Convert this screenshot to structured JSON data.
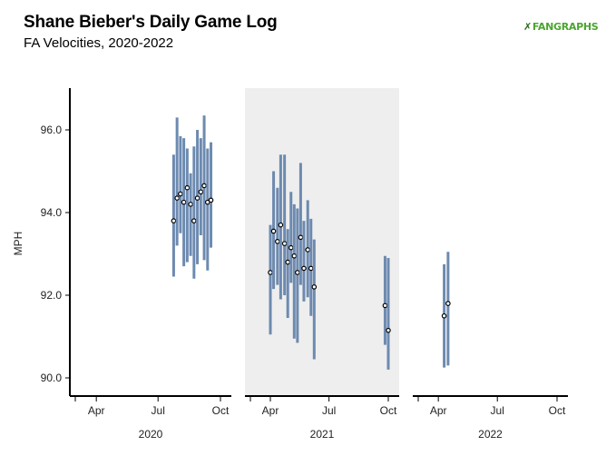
{
  "header": {
    "title": "Shane Bieber's Daily Game Log",
    "subtitle": "FA Velocities, 2020-2022",
    "logo_text": "FANGRAPHS"
  },
  "chart_data": {
    "type": "scatter",
    "title": "Shane Bieber's Daily Game Log",
    "subtitle": "FA Velocities, 2020-2022",
    "ylabel": "MPH",
    "ylim": [
      89.6,
      97.0
    ],
    "yticks": [
      90.0,
      92.0,
      94.0,
      96.0
    ],
    "ytick_labels": [
      "90.0",
      "92.0",
      "94.0",
      "96.0"
    ],
    "grid": false,
    "colors": {
      "range": "#6d8ab0",
      "point": "#000000",
      "highlight_panel": "#eeeeee"
    },
    "panels": [
      {
        "year": "2020",
        "highlighted": false,
        "ticks": [
          "Apr",
          "Jul",
          "Oct"
        ],
        "games": [
          {
            "date": "2020-07-24",
            "value": 93.8,
            "min": 92.45,
            "max": 95.4
          },
          {
            "date": "2020-07-29",
            "value": 94.35,
            "min": 93.2,
            "max": 96.3
          },
          {
            "date": "2020-08-03",
            "value": 94.45,
            "min": 93.5,
            "max": 95.85
          },
          {
            "date": "2020-08-08",
            "value": 94.25,
            "min": 92.7,
            "max": 95.8
          },
          {
            "date": "2020-08-13",
            "value": 94.6,
            "min": 92.8,
            "max": 95.55
          },
          {
            "date": "2020-08-18",
            "value": 94.2,
            "min": 92.95,
            "max": 94.95
          },
          {
            "date": "2020-08-23",
            "value": 93.8,
            "min": 92.4,
            "max": 95.6
          },
          {
            "date": "2020-08-28",
            "value": 94.35,
            "min": 92.75,
            "max": 96.0
          },
          {
            "date": "2020-09-02",
            "value": 94.5,
            "min": 93.45,
            "max": 95.8
          },
          {
            "date": "2020-09-07",
            "value": 94.65,
            "min": 92.85,
            "max": 96.35
          },
          {
            "date": "2020-09-12",
            "value": 94.25,
            "min": 92.6,
            "max": 95.55
          },
          {
            "date": "2020-09-17",
            "value": 94.3,
            "min": 93.15,
            "max": 95.7
          }
        ]
      },
      {
        "year": "2021",
        "highlighted": true,
        "ticks": [
          "Apr",
          "Jul",
          "Oct"
        ],
        "games": [
          {
            "date": "2021-04-01",
            "value": 92.55,
            "min": 91.05,
            "max": 93.7
          },
          {
            "date": "2021-04-06",
            "value": 93.55,
            "min": 92.15,
            "max": 95.0
          },
          {
            "date": "2021-04-12",
            "value": 93.3,
            "min": 92.25,
            "max": 94.6
          },
          {
            "date": "2021-04-17",
            "value": 93.7,
            "min": 91.9,
            "max": 95.4
          },
          {
            "date": "2021-04-23",
            "value": 93.25,
            "min": 92.0,
            "max": 95.4
          },
          {
            "date": "2021-04-28",
            "value": 92.8,
            "min": 91.45,
            "max": 93.6
          },
          {
            "date": "2021-05-03",
            "value": 93.15,
            "min": 92.3,
            "max": 94.5
          },
          {
            "date": "2021-05-08",
            "value": 92.95,
            "min": 90.95,
            "max": 94.2
          },
          {
            "date": "2021-05-13",
            "value": 92.55,
            "min": 90.85,
            "max": 94.1
          },
          {
            "date": "2021-05-18",
            "value": 93.4,
            "min": 92.25,
            "max": 95.2
          },
          {
            "date": "2021-05-23",
            "value": 92.65,
            "min": 91.85,
            "max": 93.8
          },
          {
            "date": "2021-05-29",
            "value": 93.1,
            "min": 91.95,
            "max": 94.3
          },
          {
            "date": "2021-06-03",
            "value": 92.65,
            "min": 91.5,
            "max": 93.85
          },
          {
            "date": "2021-06-08",
            "value": 92.2,
            "min": 90.45,
            "max": 93.35
          },
          {
            "date": "2021-09-26",
            "value": 91.75,
            "min": 90.8,
            "max": 92.95
          },
          {
            "date": "2021-10-01",
            "value": 91.15,
            "min": 90.2,
            "max": 92.9
          }
        ]
      },
      {
        "year": "2022",
        "highlighted": false,
        "ticks": [
          "Apr",
          "Jul",
          "Oct"
        ],
        "games": [
          {
            "date": "2022-04-10",
            "value": 91.5,
            "min": 90.25,
            "max": 92.75
          },
          {
            "date": "2022-04-16",
            "value": 91.8,
            "min": 90.3,
            "max": 93.05
          }
        ]
      }
    ]
  }
}
